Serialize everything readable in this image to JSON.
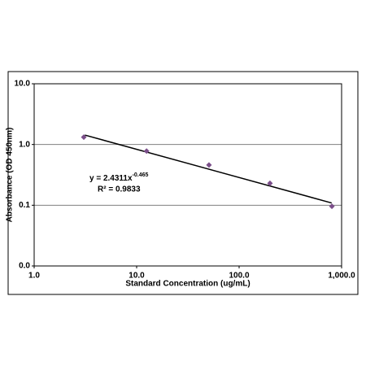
{
  "chart_data": {
    "type": "scatter",
    "x_label": "Standard Concentration (ug/mL)",
    "y_label": "Absorbance (OD 450nm)",
    "x": [
      3.05,
      12.5,
      50.8,
      200,
      804
    ],
    "series": [
      {
        "color": "#7b4f8a",
        "values": [
          1.32,
          0.78,
          0.46,
          0.23,
          0.096
        ]
      }
    ],
    "trendline": {
      "color": "#000000",
      "x": [
        3.125,
        800
      ],
      "y": [
        1.43,
        0.109
      ]
    },
    "equation": "y = 2.4311x",
    "equation_exponent": "-0.465",
    "r_squared": "R² = 0.9833",
    "xscale": "log",
    "yscale": "log",
    "xlim": [
      1,
      1000
    ],
    "ylim": [
      0.01,
      10
    ],
    "xticks": [
      {
        "value": 1,
        "label": "1.0"
      },
      {
        "value": 10,
        "label": "10.0"
      },
      {
        "value": 100,
        "label": "100.0"
      },
      {
        "value": 1000,
        "label": "1,000.0"
      }
    ],
    "yticks": [
      {
        "value": 0.01,
        "label": "0.0"
      },
      {
        "value": 0.1,
        "label": "0.1"
      },
      {
        "value": 1,
        "label": "1.0"
      },
      {
        "value": 10,
        "label": "10.0"
      }
    ],
    "grid": true
  }
}
